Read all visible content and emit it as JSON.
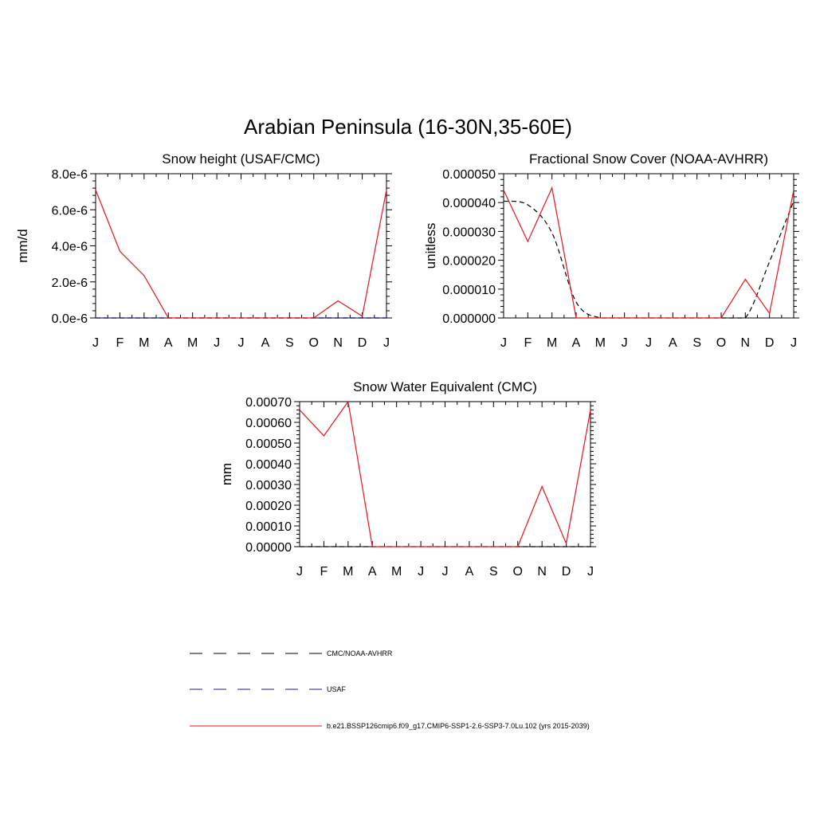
{
  "figure": {
    "title": "Arabian Peninsula (16-30N,35-60E)"
  },
  "colors": {
    "model": "#e8141c",
    "obs_cmc": "#000000",
    "obs_usaf": "#1a1a8c"
  },
  "legend": {
    "entries": [
      {
        "label": "CMC/NOAA-AVHRR",
        "style": "dashed",
        "color": "#000000"
      },
      {
        "label": "USAF",
        "style": "dashed",
        "color": "#1a1a8c"
      },
      {
        "label": "b.e21.BSSP126cmip6.f09_g17.CMIP6-SSP1-2.6-SSP3-7.0Lu.102 (yrs 2015-2039)",
        "style": "solid",
        "color": "#e8141c"
      }
    ]
  },
  "chart_data": [
    {
      "type": "line",
      "title": "Snow height (USAF/CMC)",
      "ylabel": "mm/d",
      "xlabel": "",
      "categories": [
        "J",
        "F",
        "M",
        "A",
        "M",
        "J",
        "J",
        "A",
        "S",
        "O",
        "N",
        "D",
        "J"
      ],
      "ylim": [
        0,
        8e-06
      ],
      "yticks": [
        0,
        2e-06,
        4e-06,
        6e-06,
        8e-06
      ],
      "ytick_labels": [
        "0.0e-6",
        "2.0e-6",
        "4.0e-6",
        "6.0e-6",
        "8.0e-6"
      ],
      "series": [
        {
          "role": "model",
          "style": "solid",
          "values": [
            7.1e-06,
            3.7e-06,
            2.35e-06,
            0,
            0,
            0,
            0,
            0,
            0,
            0,
            9.5e-07,
            1e-07,
            7.1e-06
          ]
        },
        {
          "role": "obs_cmc",
          "style": "dashed",
          "values": [
            0,
            0,
            0,
            0,
            0,
            0,
            0,
            0,
            0,
            0,
            0,
            0,
            0
          ]
        },
        {
          "role": "obs_usaf",
          "style": "dashed",
          "values": [
            0,
            0,
            0,
            0,
            0,
            0,
            0,
            0,
            0,
            0,
            0,
            0,
            0
          ]
        }
      ]
    },
    {
      "type": "line",
      "title": "Fractional Snow Cover (NOAA-AVHRR)",
      "ylabel": "unitless",
      "xlabel": "",
      "categories": [
        "J",
        "F",
        "M",
        "A",
        "M",
        "J",
        "J",
        "A",
        "S",
        "O",
        "N",
        "D",
        "J"
      ],
      "ylim": [
        0,
        5e-05
      ],
      "yticks": [
        0,
        1e-05,
        2e-05,
        3e-05,
        4e-05,
        5e-05
      ],
      "ytick_labels": [
        "0.000000",
        "0.000010",
        "0.000020",
        "0.000030",
        "0.000040",
        "0.000050"
      ],
      "series": [
        {
          "role": "model",
          "style": "solid",
          "values": [
            4.43e-05,
            2.65e-05,
            4.51e-05,
            0,
            0,
            0,
            0,
            0,
            0,
            0,
            1.34e-05,
            1.6e-06,
            4.43e-05
          ]
        },
        {
          "role": "obs_cmc",
          "style": "dashed",
          "smooth": true,
          "values": [
            4.05e-05,
            3.92e-05,
            2.95e-05,
            5.5e-06,
            0,
            0,
            0,
            0,
            0,
            0,
            0,
            1.95e-05,
            4.05e-05
          ]
        }
      ]
    },
    {
      "type": "line",
      "title": "Snow Water Equivalent (CMC)",
      "ylabel": "mm",
      "xlabel": "",
      "categories": [
        "J",
        "F",
        "M",
        "A",
        "M",
        "J",
        "J",
        "A",
        "S",
        "O",
        "N",
        "D",
        "J"
      ],
      "ylim": [
        0,
        0.0007
      ],
      "yticks": [
        0,
        0.0001,
        0.0002,
        0.0003,
        0.0004,
        0.0005,
        0.0006,
        0.0007
      ],
      "ytick_labels": [
        "0.00000",
        "0.00010",
        "0.00020",
        "0.00030",
        "0.00040",
        "0.00050",
        "0.00060",
        "0.00070"
      ],
      "series": [
        {
          "role": "model",
          "style": "solid",
          "values": [
            0.00066,
            0.000535,
            0.0007,
            0,
            0,
            0,
            0,
            0,
            0,
            0,
            0.00029,
            1.5e-05,
            0.00066
          ]
        },
        {
          "role": "obs_cmc",
          "style": "dashed",
          "values": [
            0,
            0,
            0,
            0,
            0,
            0,
            0,
            0,
            0,
            0,
            0,
            0,
            0
          ]
        }
      ]
    }
  ]
}
